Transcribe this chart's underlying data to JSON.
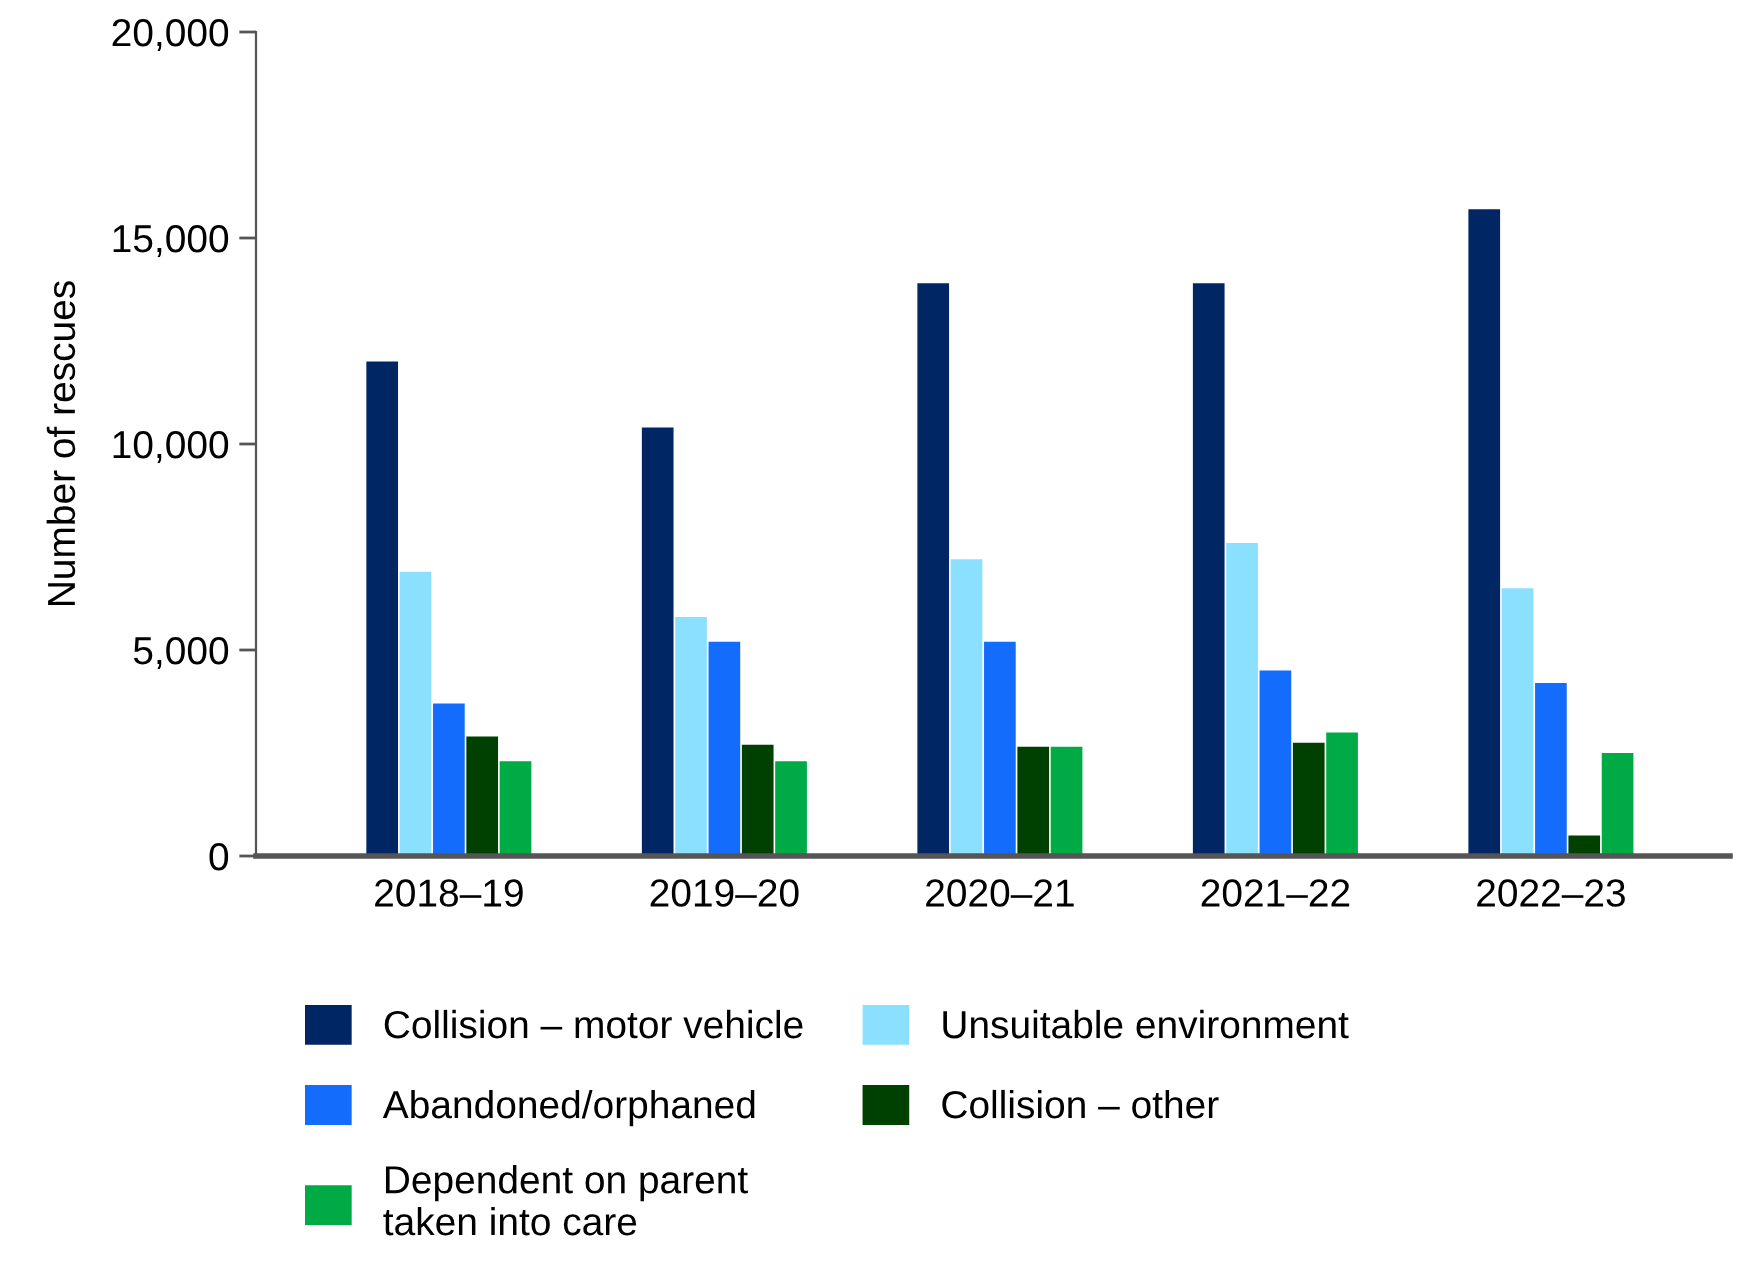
{
  "chart_data": {
    "type": "bar",
    "ylabel": "Number of rescues",
    "categories": [
      "2018–19",
      "2019–20",
      "2020–21",
      "2021–22",
      "2022–23"
    ],
    "series": [
      {
        "name": "Collision – motor vehicle",
        "color": "#002664",
        "values": [
          12000,
          10400,
          13900,
          13900,
          15700
        ]
      },
      {
        "name": "Unsuitable environment",
        "color": "#8ce0ff",
        "values": [
          6900,
          5800,
          7200,
          7600,
          6500
        ]
      },
      {
        "name": "Abandoned/orphaned",
        "color": "#146cfd",
        "values": [
          3700,
          5200,
          5200,
          4500,
          4200
        ]
      },
      {
        "name": "Collision – other",
        "color": "#004000",
        "values": [
          2900,
          2700,
          2650,
          2750,
          500
        ]
      },
      {
        "name": "Dependent on parent\ntaken into care",
        "color": "#00aa45",
        "values": [
          2300,
          2300,
          2650,
          3000,
          2500
        ]
      }
    ],
    "ylim": [
      0,
      20000
    ],
    "yticks": [
      {
        "value": 0,
        "label": "0"
      },
      {
        "value": 5000,
        "label": "5,000"
      },
      {
        "value": 10000,
        "label": "10,000"
      },
      {
        "value": 15000,
        "label": "15,000"
      },
      {
        "value": 20000,
        "label": "20,000"
      }
    ],
    "grid": false,
    "legend": "bottom"
  }
}
